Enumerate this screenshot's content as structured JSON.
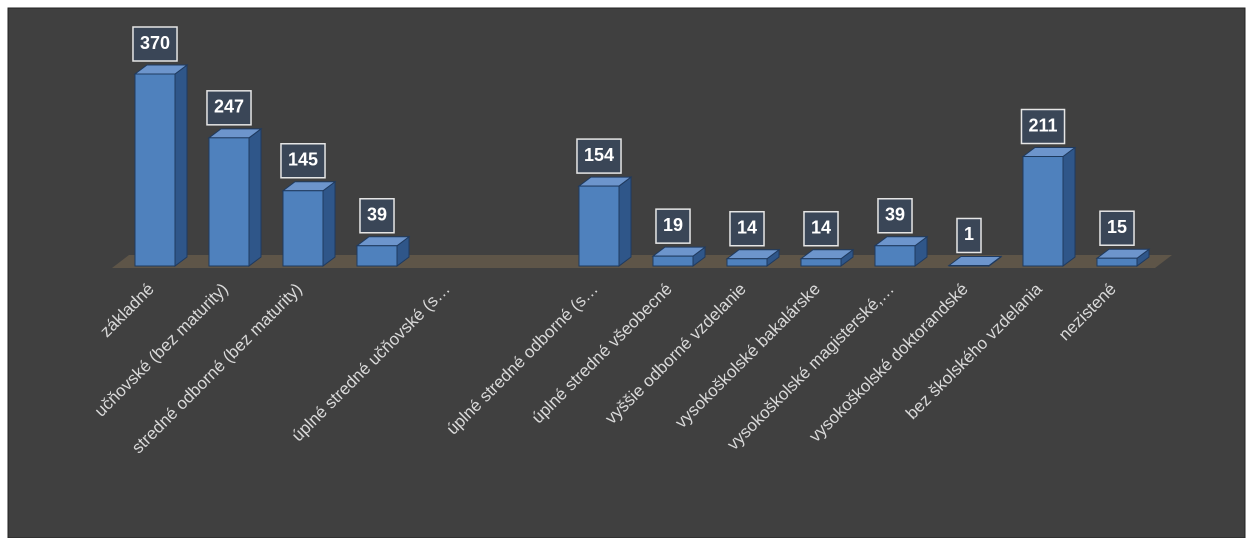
{
  "chart_data": {
    "type": "bar3d",
    "categories": [
      "základné",
      "učňovské (bez maturity)",
      "stredné odborné (bez maturity)",
      null,
      "úplné stredné učňovské (s…",
      null,
      "úplné stredné odborné (s…",
      "úplné stredné všeobecné",
      "vyššie odborné vzdelanie",
      "vysokoškolské bakalárske",
      "vysokoškolské magisterské,…",
      "vysokoškolské doktorandské",
      "bez školského vzdelania",
      "nezistené"
    ],
    "values": [
      370,
      247,
      145,
      39,
      null,
      null,
      154,
      19,
      14,
      14,
      39,
      1,
      211,
      15
    ],
    "color": "#4f81bd"
  }
}
